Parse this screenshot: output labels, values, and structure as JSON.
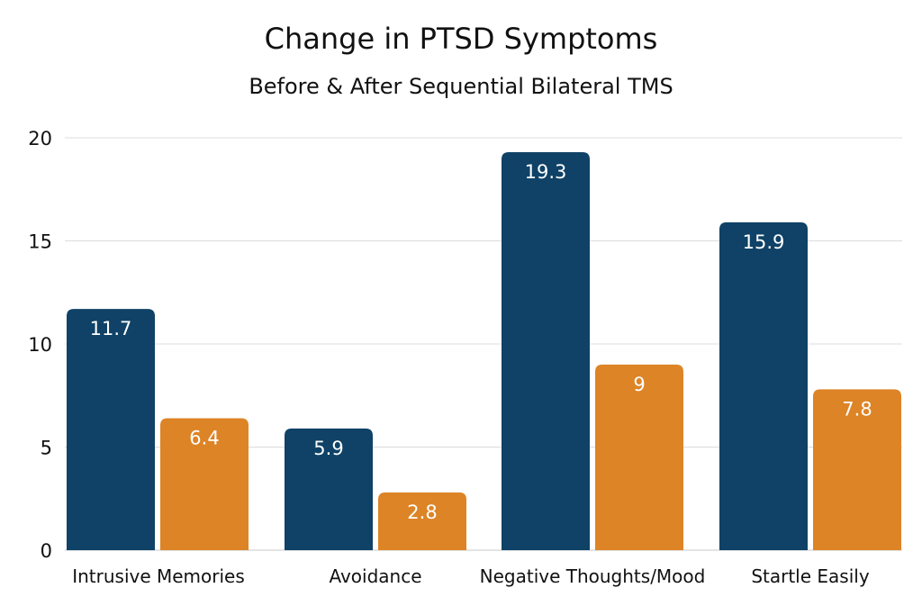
{
  "chart_data": {
    "type": "bar",
    "title": "Change in PTSD Symptoms",
    "subtitle": "Before & After Sequential Bilateral TMS",
    "categories": [
      "Intrusive Memories",
      "Avoidance",
      "Negative Thoughts/Mood",
      "Startle Easily"
    ],
    "series": [
      {
        "values": [
          11.7,
          5.9,
          19.3,
          15.9
        ],
        "labels": [
          "11.7",
          "5.9",
          "19.3",
          "15.9"
        ],
        "color": "#0f4266"
      },
      {
        "values": [
          6.4,
          2.8,
          9,
          7.8
        ],
        "labels": [
          "6.4",
          "2.8",
          "9",
          "7.8"
        ],
        "color": "#dd8426"
      }
    ],
    "yticks": [
      "0",
      "5",
      "10",
      "15",
      "20"
    ],
    "ylim": [
      0,
      20
    ],
    "grid": true,
    "legend": "none"
  }
}
